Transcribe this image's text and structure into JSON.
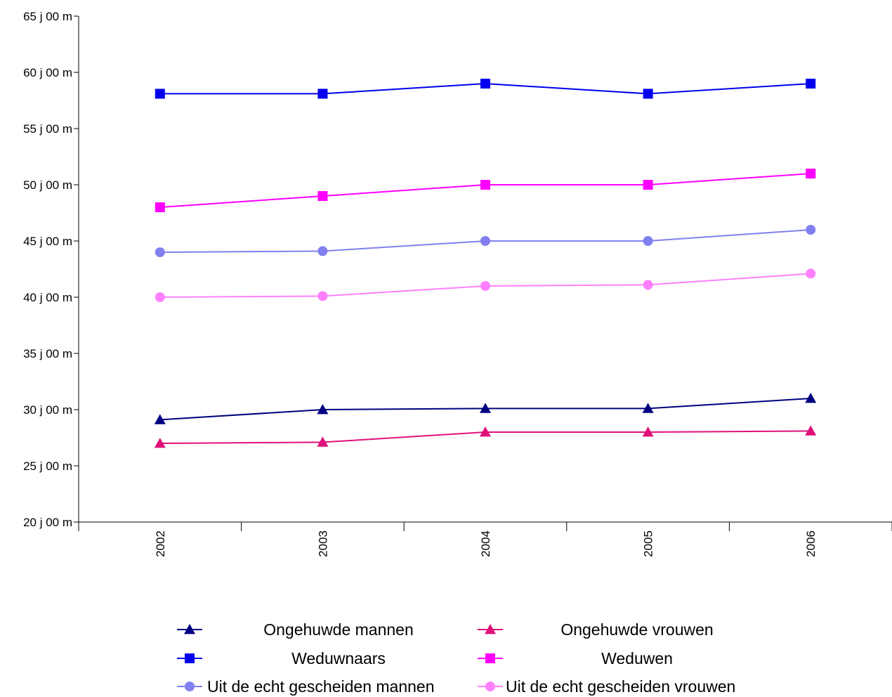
{
  "chart_data": {
    "type": "line",
    "categories": [
      "2002",
      "2003",
      "2004",
      "2005",
      "2006"
    ],
    "y_tick_labels": [
      "65 j 00 m",
      "60 j 00 m",
      "55 j 00 m",
      "50 j 00 m",
      "45 j 00 m",
      "40 j 00 m",
      "35 j 00 m",
      "30 j 00 m",
      "25 j 00 m",
      "20 j 00 m"
    ],
    "y_ticks": [
      65,
      60,
      55,
      50,
      45,
      40,
      35,
      30,
      25,
      20
    ],
    "ylim": [
      20,
      65
    ],
    "y_unit": "years",
    "grid": false,
    "legend_position": "bottom",
    "series": [
      {
        "name": "Ongehuwde mannen",
        "marker": "triangle",
        "color": "#000080",
        "values": [
          29.1,
          30.0,
          30.1,
          30.1,
          31.0
        ]
      },
      {
        "name": "Ongehuwde vrouwen",
        "marker": "triangle",
        "color": "#e0107a",
        "values": [
          27.0,
          27.1,
          28.0,
          28.0,
          28.1
        ]
      },
      {
        "name": "Weduwnaars",
        "marker": "square",
        "color": "#0000ee",
        "values": [
          58.1,
          58.1,
          59.0,
          58.1,
          59.0
        ]
      },
      {
        "name": "Weduwen",
        "marker": "square",
        "color": "#ff00ff",
        "values": [
          48.0,
          49.0,
          50.0,
          50.0,
          51.0
        ]
      },
      {
        "name": "Uit de echt gescheiden mannen",
        "marker": "circle",
        "color": "#8080f0",
        "values": [
          44.0,
          44.1,
          45.0,
          45.0,
          46.0
        ]
      },
      {
        "name": "Uit de echt gescheiden vrouwen",
        "marker": "circle",
        "color": "#ff80ff",
        "values": [
          40.0,
          40.1,
          41.0,
          41.1,
          42.1
        ]
      }
    ]
  }
}
